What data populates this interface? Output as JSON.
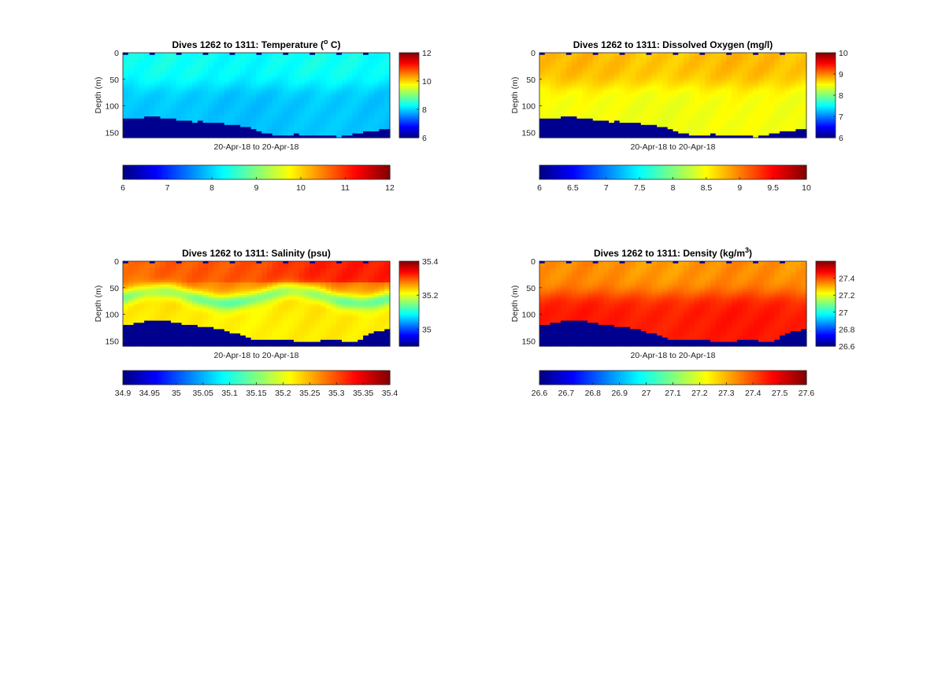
{
  "chart_data": [
    {
      "type": "heatmap",
      "title": "Dives 1262 to 1311: Temperature (",
      "title_superscript": "o",
      "title_suffix": " C)",
      "xlabel": "20-Apr-18 to 20-Apr-18",
      "ylabel": "Depth (m)",
      "ylim": [
        0,
        160
      ],
      "y_ticks": [
        0,
        50,
        100,
        150
      ],
      "dives": [
        1262,
        1311
      ],
      "colormap": "jet",
      "clim": [
        6,
        12
      ],
      "colorbar_right_ticks": [
        6,
        8,
        10,
        12
      ],
      "colorbar_bottom_ticks": [
        6,
        7,
        8,
        9,
        10,
        11,
        12
      ],
      "surface_value": 8.3,
      "bottom_value": 7.9,
      "seafloor_depth_m": [
        122,
        124,
        123,
        121,
        120,
        119,
        120,
        121,
        122,
        124,
        126,
        127,
        128,
        129,
        128,
        130,
        131,
        132,
        131,
        133,
        134,
        136,
        138,
        140,
        143,
        146,
        149,
        152,
        154,
        155,
        154,
        153,
        152,
        153,
        154,
        155,
        154,
        153,
        155,
        156,
        157,
        156,
        154,
        152,
        150,
        148,
        147,
        146,
        144,
        142
      ],
      "features": "uniform ~8.2–8.6 °C in upper water column, ~7.9–8.1 °C below 80 m"
    },
    {
      "type": "heatmap",
      "title": "Dives 1262 to 1311: Dissolved Oxygen (mg/l)",
      "xlabel": "20-Apr-18 to 20-Apr-18",
      "ylabel": "Depth (m)",
      "ylim": [
        0,
        160
      ],
      "y_ticks": [
        0,
        50,
        100,
        150
      ],
      "dives": [
        1262,
        1311
      ],
      "colormap": "jet",
      "clim": [
        6,
        10
      ],
      "colorbar_right_ticks": [
        6,
        7,
        8,
        9,
        10
      ],
      "colorbar_bottom_ticks": [
        6,
        6.5,
        7,
        7.5,
        8,
        8.5,
        9,
        9.5,
        10
      ],
      "surface_value": 8.75,
      "bottom_value": 8.45,
      "seafloor_depth_m": [
        122,
        124,
        123,
        121,
        120,
        119,
        120,
        121,
        122,
        124,
        126,
        127,
        128,
        129,
        128,
        130,
        131,
        132,
        131,
        133,
        134,
        136,
        138,
        140,
        143,
        146,
        149,
        152,
        154,
        155,
        154,
        153,
        152,
        153,
        154,
        155,
        154,
        153,
        155,
        156,
        157,
        156,
        154,
        152,
        150,
        148,
        147,
        146,
        144,
        142
      ],
      "features": "~8.6–8.9 mg/l in upper layer, ~8.4–8.5 mg/l below"
    },
    {
      "type": "heatmap",
      "title": "Dives 1262 to 1311: Salinity (psu)",
      "xlabel": "20-Apr-18 to 20-Apr-18",
      "ylabel": "Depth (m)",
      "ylim": [
        0,
        160
      ],
      "y_ticks": [
        0,
        50,
        100,
        150
      ],
      "dives": [
        1262,
        1311
      ],
      "colormap": "jet",
      "clim": [
        34.9,
        35.4
      ],
      "colorbar_right_ticks": [
        35,
        35.2,
        35.4
      ],
      "colorbar_bottom_ticks": [
        34.9,
        34.95,
        35,
        35.05,
        35.1,
        35.15,
        35.2,
        35.25,
        35.3,
        35.35,
        35.4
      ],
      "surface_value": 35.28,
      "bottom_value": 35.22,
      "seafloor_depth_m": [
        120,
        118,
        116,
        114,
        112,
        111,
        110,
        111,
        112,
        114,
        116,
        118,
        119,
        120,
        121,
        123,
        124,
        125,
        127,
        130,
        133,
        136,
        139,
        142,
        145,
        147,
        148,
        148,
        147,
        146,
        147,
        148,
        149,
        150,
        151,
        152,
        150,
        148,
        146,
        147,
        148,
        150,
        152,
        151,
        148,
        140,
        135,
        132,
        130,
        128
      ],
      "features": "saltier ~35.28–35.33 psu near surface (right side highest), fresher ~35.18 psu band at ~50–80 m"
    },
    {
      "type": "heatmap",
      "title": "Dives 1262 to 1311: Density (kg/m",
      "title_superscript": "3",
      "title_suffix": ")",
      "xlabel": "20-Apr-18 to 20-Apr-18",
      "ylabel": "Depth (m)",
      "ylim": [
        0,
        160
      ],
      "y_ticks": [
        0,
        50,
        100,
        150
      ],
      "dives": [
        1262,
        1311
      ],
      "colormap": "jet",
      "clim": [
        26.6,
        27.6
      ],
      "colorbar_right_ticks": [
        26.6,
        26.8,
        27,
        27.2,
        27.4
      ],
      "colorbar_bottom_ticks": [
        26.6,
        26.7,
        26.8,
        26.9,
        27,
        27.1,
        27.2,
        27.3,
        27.4,
        27.5,
        27.6
      ],
      "surface_value": 27.33,
      "bottom_value": 27.45,
      "seafloor_depth_m": [
        120,
        118,
        116,
        114,
        112,
        111,
        110,
        111,
        112,
        114,
        116,
        118,
        119,
        120,
        121,
        123,
        124,
        125,
        127,
        130,
        133,
        136,
        139,
        142,
        145,
        147,
        148,
        148,
        147,
        146,
        147,
        148,
        149,
        150,
        151,
        152,
        150,
        148,
        146,
        147,
        148,
        150,
        152,
        151,
        148,
        140,
        135,
        132,
        130,
        128
      ],
      "features": "~27.3 kg/m3 near surface increasing to ~27.45 kg/m3 below ~60 m"
    }
  ]
}
